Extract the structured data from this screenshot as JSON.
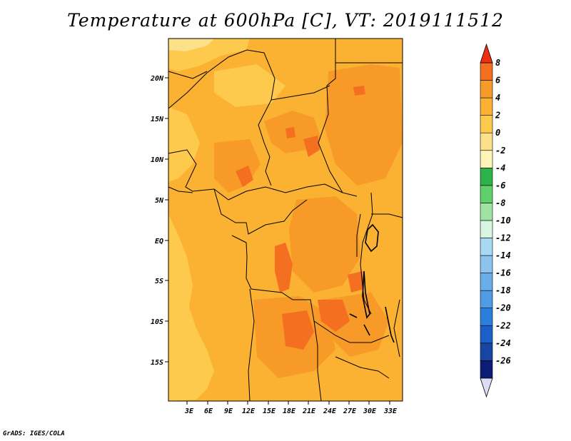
{
  "title": "Temperature at 600hPa [C], VT: 2019111512",
  "credit": "GrADS: IGES/COLA",
  "map": {
    "lat_ticks": [
      "20N",
      "15N",
      "10N",
      "5N",
      "EQ",
      "5S",
      "10S",
      "15S"
    ],
    "lon_ticks": [
      "3E",
      "6E",
      "9E",
      "12E",
      "15E",
      "18E",
      "21E",
      "24E",
      "27E",
      "30E",
      "33E"
    ],
    "extent": {
      "lon_min": 0,
      "lon_max": 35,
      "lat_min": -20,
      "lat_max": 24.5
    },
    "dominant_range": "2 to 4 C",
    "patches": "scattered 4 to 6 C cores over Chad, Cameroon, Central African Republic, DR Congo, Angola and Zambia; 0 to 2 C over the Atlantic and Sahara margins"
  },
  "colorbar": {
    "levels": [
      "8",
      "6",
      "4",
      "2",
      "0",
      "-2",
      "-4",
      "-6",
      "-8",
      "-10",
      "-12",
      "-14",
      "-16",
      "-18",
      "-20",
      "-22",
      "-24",
      "-26"
    ],
    "colors": [
      "#f03c1c",
      "#f47020",
      "#f79a27",
      "#fbb232",
      "#fdca4d",
      "#fde08a",
      "#fef4b8",
      "#2eb34a",
      "#60d06a",
      "#9ee4a0",
      "#d7f6e2",
      "#a9d8f5",
      "#8cc4ef",
      "#6aaee9",
      "#4f9be6",
      "#2c7edb",
      "#1a60c8",
      "#1745a6",
      "#0c1c74"
    ],
    "top_arrow_color": "#ee2f12",
    "bottom_arrow_color": "#dcdcf6"
  }
}
